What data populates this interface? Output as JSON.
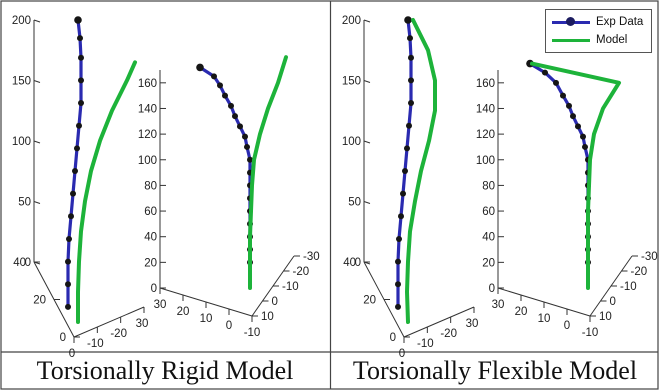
{
  "captions": {
    "left": "Torsionally Rigid Model",
    "right": "Torsionally Flexible Model"
  },
  "legend": {
    "exp_label": "Exp Data",
    "model_label": "Model"
  },
  "colors": {
    "exp_line": "#2a2ab0",
    "exp_marker": "#151515",
    "model_line": "#1db33a",
    "axis": "#333333",
    "frame": "#444444"
  },
  "chart_data": [
    {
      "type": "line",
      "panel": "rigid-side",
      "zlim": [
        0,
        200
      ],
      "z_ticks": [
        0,
        50,
        100,
        150,
        200
      ],
      "y_ticks": [
        0,
        20,
        40
      ],
      "x_ticks": [
        0,
        -10,
        -20,
        30
      ],
      "series": [
        {
          "name": "Exp Data",
          "z": [
            200,
            188,
            175,
            160,
            145,
            130,
            115,
            100,
            85,
            70,
            55,
            40,
            25,
            10
          ],
          "offset": [
            0,
            2,
            3,
            3,
            3,
            1,
            -1,
            -3,
            -5,
            -7,
            -9,
            -10,
            -10,
            -10
          ]
        },
        {
          "name": "Model",
          "z": [
            0,
            20,
            40,
            60,
            80,
            100,
            120,
            140,
            160,
            172
          ],
          "offset": [
            0,
            0,
            1,
            3,
            7,
            13,
            22,
            34,
            49,
            57
          ]
        }
      ]
    },
    {
      "type": "line",
      "panel": "rigid-front",
      "zlim": [
        0,
        170
      ],
      "z_ticks": [
        0,
        20,
        40,
        60,
        80,
        100,
        120,
        140,
        160
      ],
      "x_ticks": [
        30,
        20,
        10,
        0,
        -10
      ],
      "y_ticks": [
        -30,
        -20,
        -10,
        0,
        10
      ],
      "series": [
        {
          "name": "Exp Data",
          "z": [
            172,
            165,
            158,
            150,
            142,
            134,
            126,
            118,
            110,
            100,
            90,
            80,
            70,
            60,
            50,
            40,
            30,
            20
          ],
          "offset": [
            -50,
            -36,
            -30,
            -25,
            -19,
            -15,
            -10,
            -5,
            -3,
            0,
            0,
            0,
            0,
            0,
            0,
            0,
            0,
            0
          ]
        },
        {
          "name": "Model",
          "z": [
            0,
            20,
            40,
            60,
            80,
            100,
            120,
            140,
            160,
            180
          ],
          "offset": [
            0,
            0,
            0,
            1,
            2,
            4,
            10,
            18,
            28,
            36
          ]
        }
      ]
    },
    {
      "type": "line",
      "panel": "flexible-side",
      "zlim": [
        0,
        200
      ],
      "z_ticks": [
        0,
        50,
        100,
        150,
        200
      ],
      "y_ticks": [
        0,
        20,
        40
      ],
      "x_ticks": [
        0,
        -10,
        -20,
        30
      ],
      "series": [
        {
          "name": "Exp Data",
          "z": [
            200,
            188,
            175,
            160,
            145,
            130,
            115,
            100,
            85,
            70,
            55,
            40,
            25,
            10
          ],
          "offset": [
            0,
            2,
            3,
            3,
            3,
            1,
            -1,
            -3,
            -5,
            -7,
            -9,
            -10,
            -10,
            -10
          ]
        },
        {
          "name": "Model",
          "z": [
            0,
            20,
            40,
            60,
            80,
            100,
            120,
            140,
            160,
            180,
            200
          ],
          "offset": [
            0,
            -1,
            0,
            2,
            7,
            13,
            21,
            27,
            27,
            20,
            5
          ]
        }
      ]
    },
    {
      "type": "line",
      "panel": "flexible-front",
      "zlim": [
        0,
        170
      ],
      "z_ticks": [
        0,
        20,
        40,
        60,
        80,
        100,
        120,
        140,
        160
      ],
      "x_ticks": [
        30,
        20,
        10,
        0,
        -10
      ],
      "y_ticks": [
        -30,
        -20,
        -10,
        0,
        10
      ],
      "series": [
        {
          "name": "Exp Data",
          "z": [
            175,
            168,
            160,
            150,
            142,
            134,
            126,
            118,
            110,
            100,
            90,
            80,
            70,
            60,
            50,
            40,
            30,
            20
          ],
          "offset": [
            -58,
            -43,
            -32,
            -25,
            -19,
            -15,
            -10,
            -5,
            -3,
            0,
            0,
            0,
            0,
            0,
            0,
            0,
            0,
            0
          ]
        },
        {
          "name": "Model",
          "z": [
            0,
            20,
            40,
            60,
            80,
            100,
            120,
            140,
            160,
            175
          ],
          "offset": [
            0,
            0,
            0,
            0,
            1,
            2,
            6,
            15,
            31,
            -56
          ]
        }
      ]
    }
  ]
}
